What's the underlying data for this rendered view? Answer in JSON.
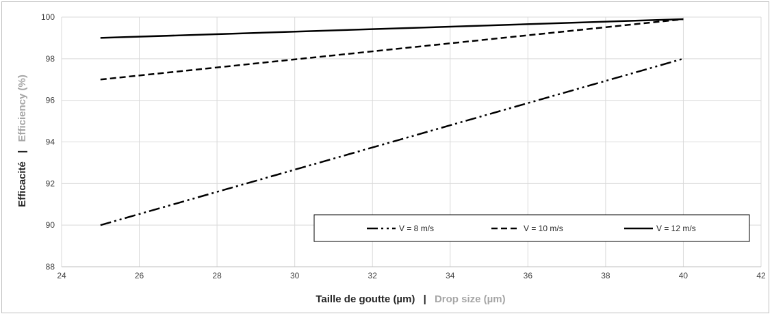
{
  "chart_data": {
    "type": "line",
    "title": "",
    "xlabel": {
      "primary": "Taille de goutte (µm)",
      "separator": "|",
      "secondary": "Drop size (µm)"
    },
    "ylabel": {
      "primary": "Efficacité",
      "separator": "|",
      "secondary": "Efficiency (%)"
    },
    "xlim": [
      24,
      42
    ],
    "ylim": [
      88,
      100
    ],
    "x_ticks": [
      24,
      26,
      28,
      30,
      32,
      34,
      36,
      38,
      40,
      42
    ],
    "y_ticks": [
      88,
      90,
      92,
      94,
      96,
      98,
      100
    ],
    "grid": "on",
    "legend_position": "bottom-right",
    "series": [
      {
        "name": "V = 8 m/s",
        "style": "dash-dot-dot",
        "x": [
          25,
          40
        ],
        "y": [
          90,
          98
        ]
      },
      {
        "name": "V = 10 m/s",
        "style": "dashed",
        "x": [
          25,
          40
        ],
        "y": [
          97,
          99.9
        ]
      },
      {
        "name": "V = 12 m/s",
        "style": "solid",
        "x": [
          25,
          40
        ],
        "y": [
          99,
          99.9
        ]
      }
    ],
    "colors": {
      "line": "#000000",
      "grid": "#d9d9d9",
      "primary_label": "#262626",
      "secondary_label": "#a6a6a6"
    }
  }
}
